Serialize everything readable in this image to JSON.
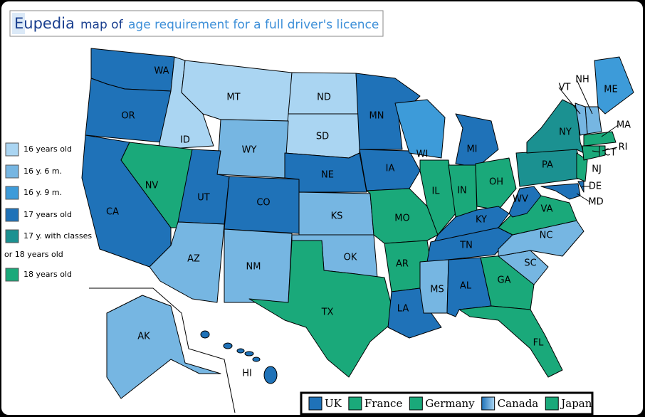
{
  "header": {
    "brand": "Eupedia",
    "title_prefix": "map of",
    "title": "age requirement for a full driver's licence"
  },
  "legend": [
    {
      "lines": [
        "16 years old"
      ],
      "color": "#aad5f2"
    },
    {
      "lines": [
        "16 y. 6 m."
      ],
      "color": "#76b6e2"
    },
    {
      "lines": [
        "16 y. 9 m."
      ],
      "color": "#3d9bd9"
    },
    {
      "lines": [
        "17 years old"
      ],
      "color": "#1f72b8"
    },
    {
      "lines": [
        "17 y. with classes",
        "or 18 years old"
      ],
      "color": "#1b9191"
    },
    {
      "lines": [
        "18 years old"
      ],
      "color": "#1aa97a"
    }
  ],
  "states": [
    {
      "code": "WA",
      "category": 3
    },
    {
      "code": "OR",
      "category": 3
    },
    {
      "code": "CA",
      "category": 3
    },
    {
      "code": "ID",
      "category": 0
    },
    {
      "code": "MT",
      "category": 0
    },
    {
      "code": "ND",
      "category": 0
    },
    {
      "code": "SD",
      "category": 0
    },
    {
      "code": "WY",
      "category": 1
    },
    {
      "code": "NV",
      "category": 5
    },
    {
      "code": "UT",
      "category": 3
    },
    {
      "code": "CO",
      "category": 3
    },
    {
      "code": "AZ",
      "category": 1
    },
    {
      "code": "NM",
      "category": 1
    },
    {
      "code": "NE",
      "category": 3
    },
    {
      "code": "KS",
      "category": 1
    },
    {
      "code": "OK",
      "category": 1
    },
    {
      "code": "TX",
      "category": 5
    },
    {
      "code": "MN",
      "category": 3
    },
    {
      "code": "IA",
      "category": 3
    },
    {
      "code": "MO",
      "category": 5
    },
    {
      "code": "AR",
      "category": 5
    },
    {
      "code": "LA",
      "category": 3
    },
    {
      "code": "WI",
      "category": 2
    },
    {
      "code": "IL",
      "category": 5
    },
    {
      "code": "MI",
      "category": 3
    },
    {
      "code": "IN",
      "category": 5
    },
    {
      "code": "OH",
      "category": 5
    },
    {
      "code": "KY",
      "category": 3
    },
    {
      "code": "TN",
      "category": 3
    },
    {
      "code": "MS",
      "category": 1
    },
    {
      "code": "AL",
      "category": 3
    },
    {
      "code": "GA",
      "category": 5
    },
    {
      "code": "FL",
      "category": 5
    },
    {
      "code": "SC",
      "category": 1
    },
    {
      "code": "NC",
      "category": 1
    },
    {
      "code": "VA",
      "category": 5
    },
    {
      "code": "WV",
      "category": 3
    },
    {
      "code": "PA",
      "category": 4
    },
    {
      "code": "NY",
      "category": 4
    },
    {
      "code": "NJ",
      "category": 5
    },
    {
      "code": "DE",
      "category": 3
    },
    {
      "code": "MD",
      "category": 3
    },
    {
      "code": "ME",
      "category": 2
    },
    {
      "code": "NH",
      "category": 1
    },
    {
      "code": "VT",
      "category": 1
    },
    {
      "code": "MA",
      "category": 5
    },
    {
      "code": "CT",
      "category": 5
    },
    {
      "code": "RI",
      "category": 5
    },
    {
      "code": "AK",
      "category": 1
    },
    {
      "code": "HI",
      "category": 3
    }
  ],
  "comparison": [
    {
      "label": "UK",
      "colors": [
        "#1f72b8"
      ]
    },
    {
      "label": "France",
      "colors": [
        "#1aa97a"
      ]
    },
    {
      "label": "Germany",
      "colors": [
        "#1aa97a"
      ]
    },
    {
      "label": "Canada",
      "colors": [
        "#1f72b8",
        "#aad5f2"
      ]
    },
    {
      "label": "Japan",
      "colors": [
        "#1aa97a"
      ]
    }
  ]
}
